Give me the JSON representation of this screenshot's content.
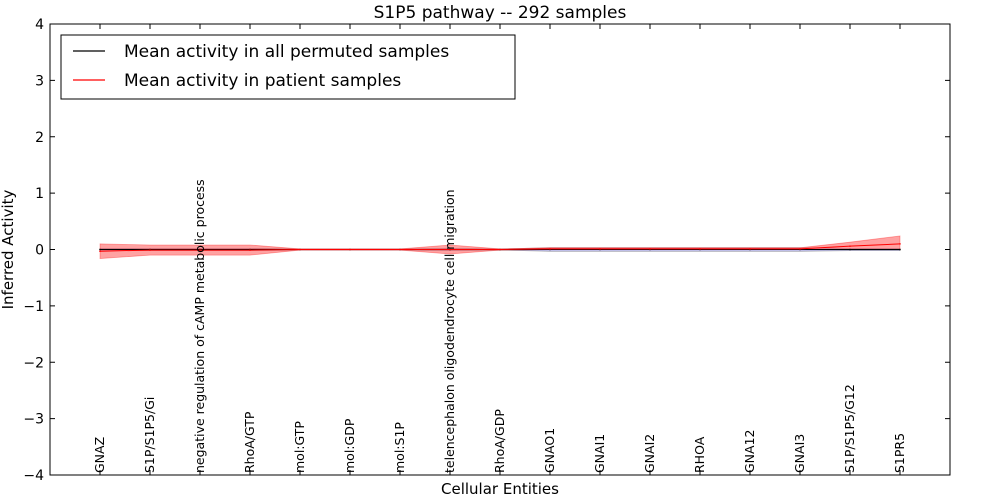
{
  "chart_data": {
    "type": "line",
    "title": "S1P5 pathway -- 292 samples",
    "xlabel": "Cellular Entities",
    "ylabel": "Inferred Activity",
    "ylim": [
      -4,
      4
    ],
    "yticks": [
      {
        "value": 4,
        "label": "4"
      },
      {
        "value": 3,
        "label": "3"
      },
      {
        "value": 2,
        "label": "2"
      },
      {
        "value": 1,
        "label": "1"
      },
      {
        "value": 0,
        "label": "0"
      },
      {
        "value": -1,
        "label": "−1"
      },
      {
        "value": -2,
        "label": "−2"
      },
      {
        "value": -3,
        "label": "−3"
      },
      {
        "value": -4,
        "label": "−4"
      }
    ],
    "categories": [
      "GNAZ",
      "S1P/S1P5/Gi",
      "negative regulation of cAMP metabolic process",
      "RhoA/GTP",
      "mol:GTP",
      "mol:GDP",
      "mol:S1P",
      "telencephalon oligodendrocyte cell migration",
      "RhoA/GDP",
      "GNAO1",
      "GNAI1",
      "GNAI2",
      "RHOA",
      "GNA12",
      "GNAI3",
      "S1P/S1P5/G12",
      "S1PR5"
    ],
    "grid": false,
    "legend_position": "top-left",
    "series": [
      {
        "name": "Mean activity in all permuted samples",
        "color": "#000000",
        "band_color": "#aaaaff",
        "values": [
          0.0,
          0.0,
          0.0,
          0.0,
          0.0,
          0.0,
          0.0,
          0.0,
          0.0,
          0.0,
          0.0,
          0.0,
          0.0,
          0.0,
          0.0,
          0.0,
          0.0
        ],
        "lower": [
          -0.02,
          -0.02,
          -0.02,
          -0.02,
          -0.01,
          -0.01,
          -0.01,
          -0.02,
          -0.01,
          -0.03,
          -0.03,
          -0.03,
          -0.03,
          -0.03,
          -0.03,
          -0.02,
          -0.02
        ],
        "upper": [
          0.02,
          0.02,
          0.02,
          0.02,
          0.01,
          0.01,
          0.01,
          0.02,
          0.01,
          0.03,
          0.03,
          0.03,
          0.03,
          0.03,
          0.03,
          0.02,
          0.02
        ]
      },
      {
        "name": "Mean activity in patient samples",
        "color": "#ff0000",
        "band_color": "#ff5555",
        "values": [
          -0.03,
          -0.01,
          -0.01,
          -0.01,
          0.0,
          0.0,
          0.0,
          0.0,
          0.0,
          0.01,
          0.01,
          0.01,
          0.01,
          0.01,
          0.01,
          0.06,
          0.1
        ],
        "lower": [
          -0.16,
          -0.1,
          -0.1,
          -0.1,
          -0.01,
          -0.01,
          -0.01,
          -0.08,
          -0.01,
          0.0,
          0.0,
          0.0,
          0.0,
          0.0,
          0.0,
          0.0,
          0.0
        ],
        "upper": [
          0.1,
          0.08,
          0.08,
          0.08,
          0.01,
          0.01,
          0.01,
          0.08,
          0.01,
          0.03,
          0.03,
          0.03,
          0.03,
          0.03,
          0.03,
          0.13,
          0.24
        ]
      }
    ]
  }
}
